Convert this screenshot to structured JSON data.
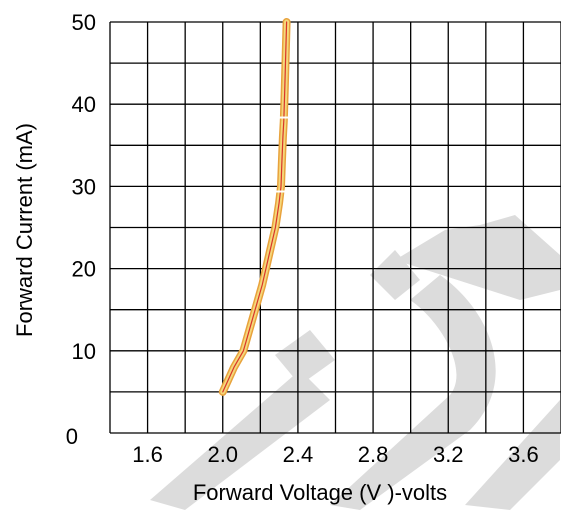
{
  "chart_data": {
    "type": "line",
    "title": "",
    "xlabel": "Forward Voltage (V )-volts",
    "ylabel": "Forward Current  (mA)",
    "xlim": [
      1.4,
      3.8
    ],
    "ylim": [
      0,
      50
    ],
    "x_ticks": [
      "1.6",
      "2.0",
      "2.4",
      "2.8",
      "3.2",
      "3.6"
    ],
    "y_ticks": [
      "0",
      "10",
      "20",
      "30",
      "40",
      "50"
    ],
    "grid": true,
    "legend": "none",
    "series": [
      {
        "color": "#e8a23c",
        "x": [
          2.0,
          2.06,
          2.11,
          2.16,
          2.21,
          2.25,
          2.28,
          2.3,
          2.31,
          2.315,
          2.32,
          2.325,
          2.33,
          2.335,
          2.34
        ],
        "y": [
          5,
          8,
          10,
          14,
          18,
          22,
          25,
          28,
          30,
          33,
          36,
          38,
          42,
          46,
          50
        ]
      }
    ],
    "colors": {
      "curve_outer": "#e8a23c",
      "curve_inner": "#f5d77a",
      "curve_core": "#d9342b",
      "watermark": "#d9d9d9"
    }
  }
}
